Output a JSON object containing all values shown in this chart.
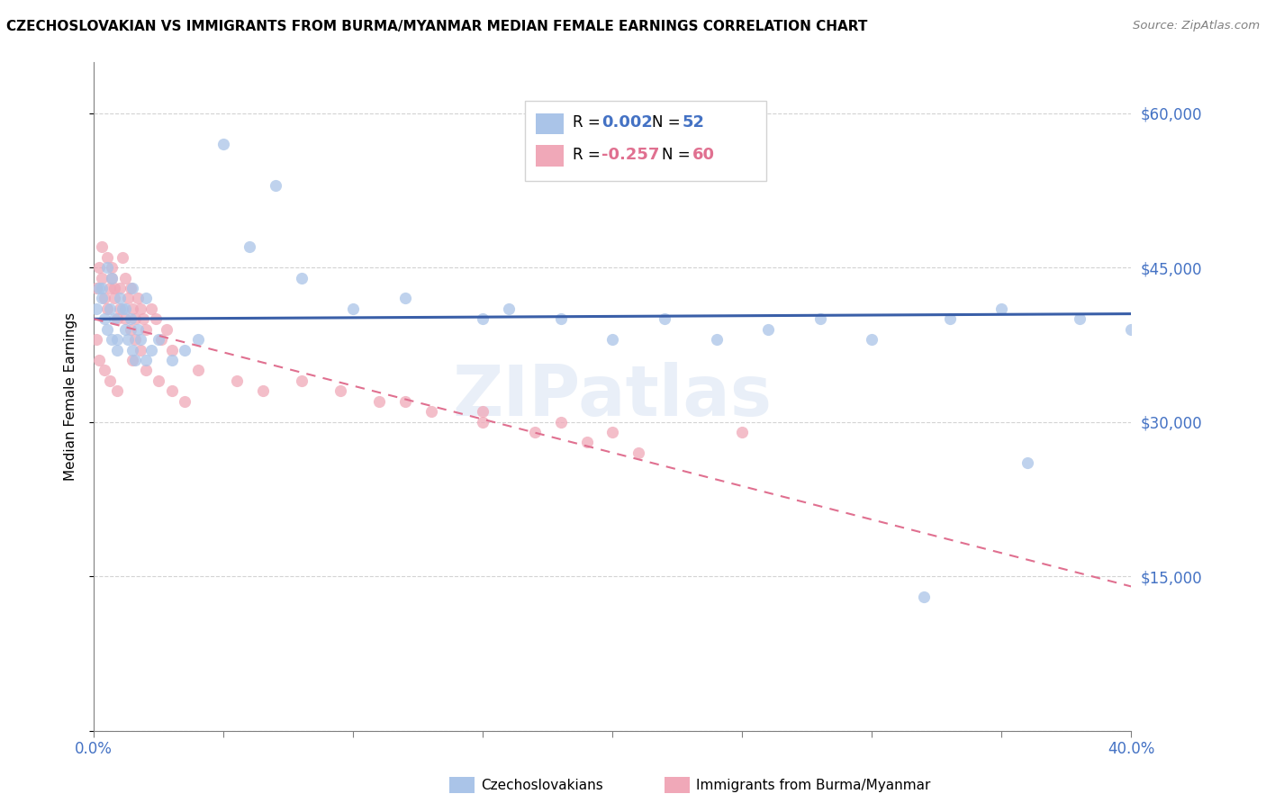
{
  "title": "CZECHOSLOVAKIAN VS IMMIGRANTS FROM BURMA/MYANMAR MEDIAN FEMALE EARNINGS CORRELATION CHART",
  "source": "Source: ZipAtlas.com",
  "ylabel": "Median Female Earnings",
  "y_ticks": [
    0,
    15000,
    30000,
    45000,
    60000
  ],
  "y_tick_labels": [
    "",
    "$15,000",
    "$30,000",
    "$45,000",
    "$60,000"
  ],
  "xmin": 0.0,
  "xmax": 0.4,
  "ymin": 0,
  "ymax": 65000,
  "series1_name": "Czechoslovakians",
  "series1_color": "#aac4e8",
  "series1_R": 0.002,
  "series1_N": 52,
  "series1_line_color": "#3a5fa8",
  "series2_name": "Immigrants from Burma/Myanmar",
  "series2_color": "#f0a8b8",
  "series2_R": -0.257,
  "series2_N": 60,
  "series2_line_color": "#e07090",
  "watermark": "ZIPatlas",
  "background_color": "#ffffff",
  "blue_line_y": [
    40000,
    40500
  ],
  "pink_line_y": [
    40000,
    14000
  ],
  "series1_x": [
    0.001,
    0.002,
    0.003,
    0.004,
    0.005,
    0.006,
    0.007,
    0.008,
    0.009,
    0.01,
    0.011,
    0.012,
    0.013,
    0.014,
    0.015,
    0.016,
    0.017,
    0.018,
    0.02,
    0.022,
    0.025,
    0.03,
    0.035,
    0.04,
    0.05,
    0.06,
    0.07,
    0.08,
    0.1,
    0.12,
    0.15,
    0.16,
    0.18,
    0.2,
    0.22,
    0.24,
    0.26,
    0.28,
    0.3,
    0.003,
    0.005,
    0.007,
    0.009,
    0.012,
    0.015,
    0.02,
    0.33,
    0.35,
    0.38,
    0.4,
    0.32,
    0.36
  ],
  "series1_y": [
    41000,
    43000,
    42000,
    40000,
    39000,
    41000,
    38000,
    40000,
    37000,
    42000,
    41000,
    39000,
    38000,
    40000,
    37000,
    36000,
    39000,
    38000,
    36000,
    37000,
    38000,
    36000,
    37000,
    38000,
    57000,
    47000,
    53000,
    44000,
    41000,
    42000,
    40000,
    41000,
    40000,
    38000,
    40000,
    38000,
    39000,
    40000,
    38000,
    43000,
    45000,
    44000,
    38000,
    41000,
    43000,
    42000,
    40000,
    41000,
    40000,
    39000,
    13000,
    26000
  ],
  "series2_x": [
    0.001,
    0.002,
    0.003,
    0.004,
    0.005,
    0.006,
    0.007,
    0.008,
    0.009,
    0.01,
    0.011,
    0.012,
    0.013,
    0.014,
    0.015,
    0.016,
    0.017,
    0.018,
    0.019,
    0.02,
    0.022,
    0.024,
    0.026,
    0.028,
    0.03,
    0.003,
    0.005,
    0.007,
    0.008,
    0.01,
    0.012,
    0.014,
    0.016,
    0.018,
    0.04,
    0.055,
    0.065,
    0.08,
    0.095,
    0.11,
    0.13,
    0.15,
    0.17,
    0.19,
    0.21,
    0.001,
    0.002,
    0.004,
    0.006,
    0.009,
    0.015,
    0.02,
    0.025,
    0.03,
    0.035,
    0.25,
    0.15,
    0.12,
    0.18,
    0.2
  ],
  "series2_y": [
    43000,
    45000,
    44000,
    42000,
    41000,
    43000,
    45000,
    43000,
    40000,
    43000,
    46000,
    44000,
    42000,
    43000,
    41000,
    40000,
    42000,
    41000,
    40000,
    39000,
    41000,
    40000,
    38000,
    39000,
    37000,
    47000,
    46000,
    44000,
    42000,
    41000,
    40000,
    39000,
    38000,
    37000,
    35000,
    34000,
    33000,
    34000,
    33000,
    32000,
    31000,
    30000,
    29000,
    28000,
    27000,
    38000,
    36000,
    35000,
    34000,
    33000,
    36000,
    35000,
    34000,
    33000,
    32000,
    29000,
    31000,
    32000,
    30000,
    29000
  ]
}
